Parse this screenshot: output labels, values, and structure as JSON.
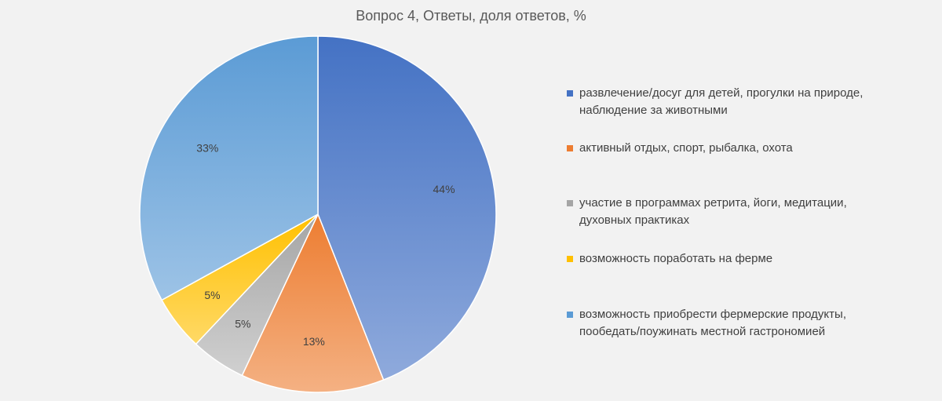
{
  "chart_data": {
    "type": "pie",
    "title": "Вопрос 4, Ответы, доля ответов, %",
    "slices": [
      {
        "label": "развлечение/досуг для детей, прогулки на природе, наблюдение за животными",
        "value": 44,
        "data_label": "44%",
        "color": "#4472c4",
        "color_light": "#8faadc"
      },
      {
        "label": "активный отдых, спорт, рыбалка, охота",
        "value": 13,
        "data_label": "13%",
        "color": "#ed7d31",
        "color_light": "#f4b183"
      },
      {
        "label": "участие в программах ретрита, йоги, медитации, духовных практиках",
        "value": 5,
        "data_label": "5%",
        "color": "#a5a5a5",
        "color_light": "#d0d0d0"
      },
      {
        "label": "возможность поработать на ферме",
        "value": 5,
        "data_label": "5%",
        "color": "#ffc000",
        "color_light": "#ffd966"
      },
      {
        "label": "возможность приобрести фермерские продукты, пообедать/поужинать местной гастрономией",
        "value": 33,
        "data_label": "33%",
        "color": "#5b9bd5",
        "color_light": "#9dc3e6"
      }
    ],
    "legend_position": "right"
  }
}
